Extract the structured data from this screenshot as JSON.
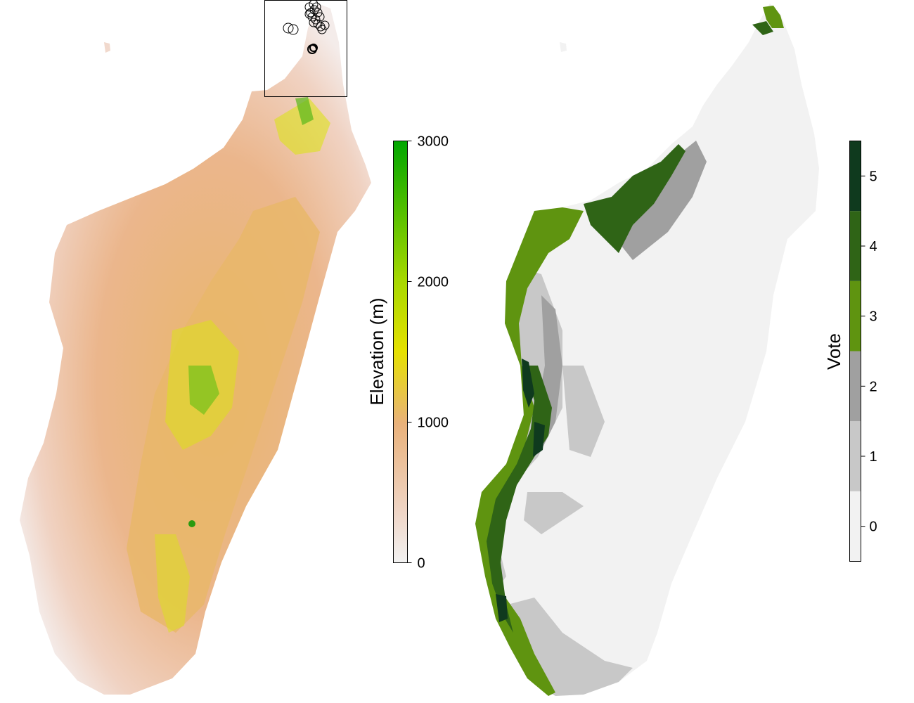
{
  "elevation_legend": {
    "title": "Elevation (m)",
    "ticks": [
      "0",
      "1000",
      "2000",
      "3000"
    ],
    "tick_values": [
      0,
      1000,
      2000,
      3000
    ],
    "range": [
      0,
      3000
    ],
    "colors": [
      "#f2f2f2",
      "#eebfa2",
      "#e9b17a",
      "#e6e100",
      "#a6d800",
      "#00a600"
    ]
  },
  "vote_legend": {
    "title": "Vote",
    "ticks": [
      "0",
      "1",
      "2",
      "3",
      "4",
      "5"
    ],
    "classes": [
      {
        "value": 0,
        "color": "#f2f2f2"
      },
      {
        "value": 1,
        "color": "#c8c8c8"
      },
      {
        "value": 2,
        "color": "#a0a0a0"
      },
      {
        "value": 3,
        "color": "#5f9410"
      },
      {
        "value": 4,
        "color": "#2f6416"
      },
      {
        "value": 5,
        "color": "#0f3a1e"
      }
    ]
  }
}
